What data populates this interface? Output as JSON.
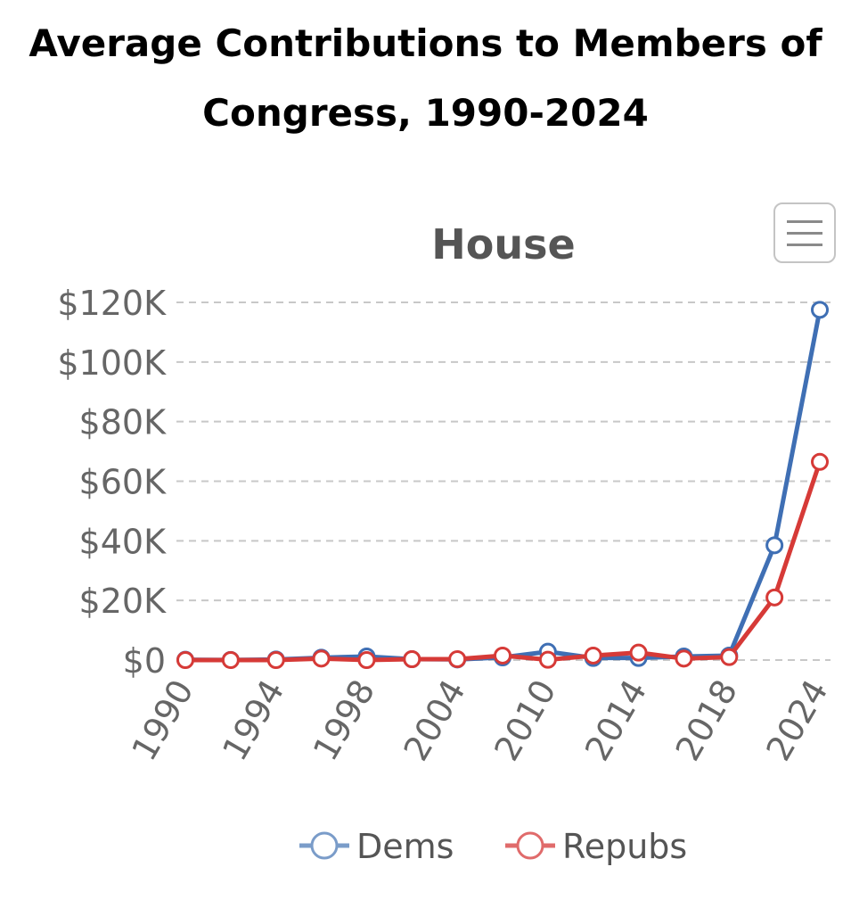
{
  "page": {
    "title_line1": "Average Contributions to Members of",
    "title_line2": "Congress, 1990-2024"
  },
  "menu": {
    "icon": "hamburger-menu-icon"
  },
  "chart_data": {
    "type": "line",
    "title": "House",
    "xlabel": "",
    "ylabel": "",
    "x": [
      1990,
      1992,
      1994,
      1996,
      1998,
      2000,
      2004,
      2008,
      2010,
      2012,
      2014,
      2016,
      2018,
      2020,
      2024
    ],
    "x_tick_labels": [
      "1990",
      "1994",
      "1998",
      "2004",
      "2010",
      "2014",
      "2018",
      "2024"
    ],
    "x_tick_positions": [
      0,
      2,
      4,
      6,
      8,
      10,
      12,
      14
    ],
    "ylim": [
      0,
      120000
    ],
    "y_ticks": [
      0,
      20000,
      40000,
      60000,
      80000,
      100000,
      120000
    ],
    "y_tick_labels": [
      "$0",
      "$20K",
      "$40K",
      "$60K",
      "$80K",
      "$100K",
      "$120K"
    ],
    "grid": true,
    "legend_position": "bottom",
    "series": [
      {
        "name": "Dems",
        "color": "#3f6fb4",
        "marker_color": "#7a9cc9",
        "values": [
          100,
          50,
          200,
          800,
          1200,
          300,
          200,
          900,
          2800,
          700,
          700,
          1200,
          1500,
          38500,
          117500
        ]
      },
      {
        "name": "Repubs",
        "color": "#d63a37",
        "marker_color": "#e06b6b",
        "values": [
          0,
          0,
          0,
          500,
          0,
          300,
          300,
          1500,
          100,
          1500,
          2500,
          500,
          1000,
          21000,
          66500
        ]
      }
    ]
  }
}
